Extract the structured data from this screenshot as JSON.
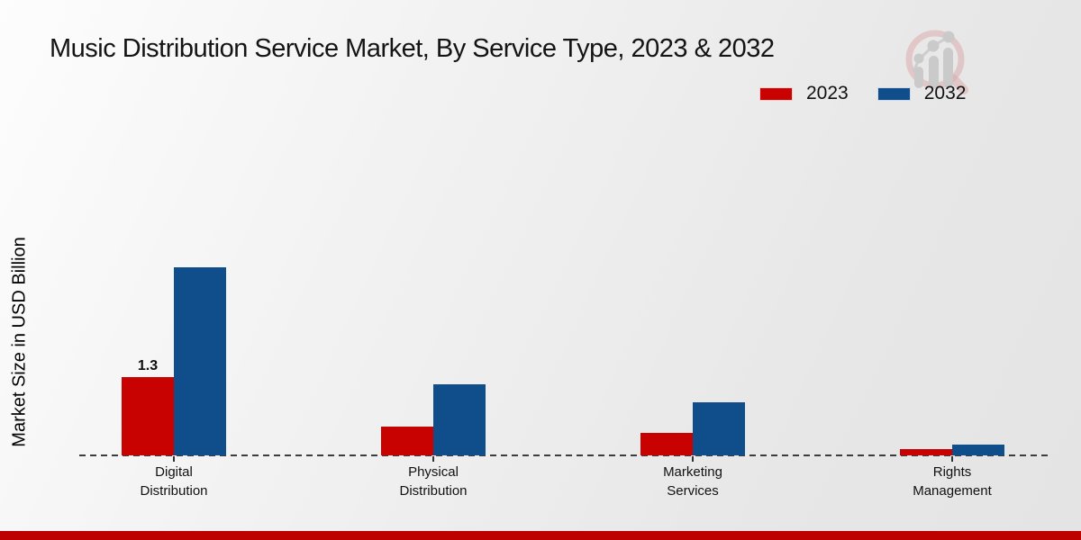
{
  "header": {
    "title": "Music Distribution Service Market, By Service Type, 2023 & 2032"
  },
  "legend": {
    "items": [
      {
        "label": "2023",
        "color": "#c80101"
      },
      {
        "label": "2032",
        "color": "#0f4d8b"
      }
    ]
  },
  "y_axis": {
    "label": "Market Size in USD Billion"
  },
  "x_axis": {
    "categories": [
      {
        "line1": "Digital",
        "line2": "Distribution"
      },
      {
        "line1": "Physical",
        "line2": "Distribution"
      },
      {
        "line1": "Marketing",
        "line2": "Services"
      },
      {
        "line1": "Rights",
        "line2": "Management"
      }
    ]
  },
  "watermark": {
    "icon": "magnifier-growth-chart-logo"
  },
  "footer": {
    "bar_color": "#bd0101"
  },
  "chart_data": {
    "type": "bar",
    "title": "Music Distribution Service Market, By Service Type, 2023 & 2032",
    "categories": [
      "Digital Distribution",
      "Physical Distribution",
      "Marketing Services",
      "Rights Management"
    ],
    "series": [
      {
        "name": "2023",
        "color": "#c80101",
        "values": [
          1.3,
          0.48,
          0.37,
          0.1
        ]
      },
      {
        "name": "2032",
        "color": "#0f4d8b",
        "values": [
          3.12,
          1.18,
          0.88,
          0.18
        ]
      }
    ],
    "xlabel": "",
    "ylabel": "Market Size in USD Billion",
    "ylim": [
      0,
      3.5
    ],
    "grid": false,
    "axis_line_style": "dashed",
    "legend_position": "top-right",
    "data_labels": [
      {
        "series": "2023",
        "category": "Digital Distribution",
        "text": "1.3"
      }
    ]
  }
}
